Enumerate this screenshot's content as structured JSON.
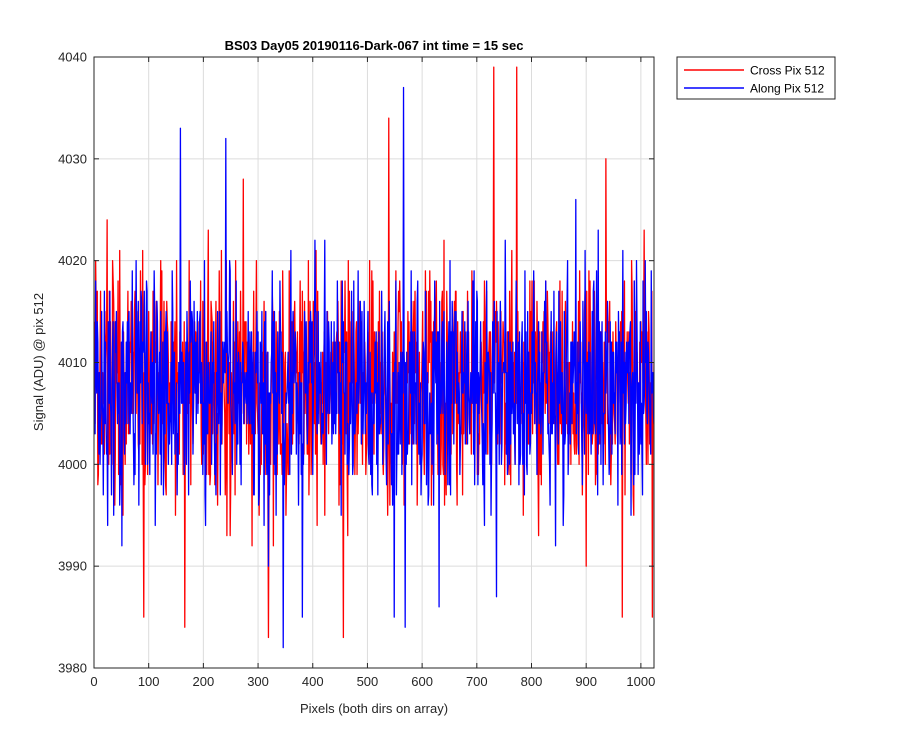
{
  "chart_data": {
    "type": "line",
    "title": "BS03 Day05 20190116-Dark-067 int time = 15 sec",
    "xlabel": "Pixels (both dirs on array)",
    "ylabel": "Signal (ADU) @ pix 512",
    "xlim": [
      0,
      1024
    ],
    "ylim": [
      3980,
      4040
    ],
    "xticks": [
      0,
      100,
      200,
      300,
      400,
      500,
      600,
      700,
      800,
      900,
      1000
    ],
    "yticks": [
      3980,
      3990,
      4000,
      4010,
      4020,
      4030,
      4040
    ],
    "xtick_labels": [
      "0",
      "100",
      "200",
      "300",
      "400",
      "500",
      "600",
      "700",
      "800",
      "900",
      "1000"
    ],
    "ytick_labels": [
      "3980",
      "3990",
      "4000",
      "4010",
      "4020",
      "4030",
      "4040"
    ],
    "grid": true,
    "legend_position": "outside-top-right",
    "series": [
      {
        "name": "Cross Pix 512",
        "color": "#ff0000",
        "n_points": 1024,
        "mean": 4007.5,
        "noise_sd": 6.0,
        "seed": 12345,
        "extremes": [
          [
            90,
            3985
          ],
          [
            165,
            3984
          ],
          [
            318,
            3983
          ],
          [
            455,
            3983
          ],
          [
            538,
            4034
          ],
          [
            730,
            4039
          ],
          [
            772,
            4039
          ],
          [
            965,
            3985
          ],
          [
            1020,
            3985
          ],
          [
            935,
            4030
          ],
          [
            272,
            4028
          ]
        ]
      },
      {
        "name": "Along Pix 512",
        "color": "#0000ff",
        "n_points": 1024,
        "mean": 4007.5,
        "noise_sd": 6.0,
        "seed": 67890,
        "extremes": [
          [
            157,
            4033
          ],
          [
            345,
            3982
          ],
          [
            565,
            4037
          ],
          [
            568,
            3984
          ],
          [
            548,
            3985
          ],
          [
            630,
            3986
          ],
          [
            735,
            3987
          ],
          [
            240,
            4032
          ],
          [
            380,
            3985
          ],
          [
            880,
            4026
          ]
        ]
      }
    ]
  }
}
